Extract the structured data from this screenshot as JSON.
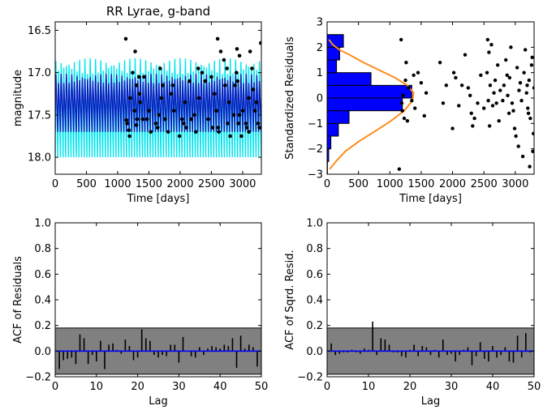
{
  "colors": {
    "model_outer": "#00e5ee",
    "model_inner": "#0a1fc0",
    "points": "#000000",
    "hist_fill": "#0000ff",
    "normal_curve": "#ff8c1a",
    "acf_band": "#808080",
    "zero_line": "#0000ff"
  },
  "chart_data": [
    {
      "type": "line",
      "title": "RR Lyrae, g-band",
      "xlabel": "Time [days]",
      "ylabel": "magnitude",
      "xlim": [
        0,
        3300
      ],
      "ylim": [
        18.2,
        16.4
      ],
      "y_inverted": true,
      "xticks": [
        0,
        500,
        1000,
        1500,
        2000,
        2500,
        3000
      ],
      "xtick_labels": [
        "0",
        "500",
        "1000",
        "1500",
        "2000",
        "2500",
        "3000"
      ],
      "yticks": [
        16.5,
        17.0,
        17.5,
        18.0
      ],
      "ytick_labels": [
        "16.5",
        "17.0",
        "17.5",
        "18.0"
      ],
      "model_band": {
        "oscillation_count": 78,
        "outer_min": 16.72,
        "outer_max": 18.0,
        "inner_min": 16.95,
        "inner_max": 17.7
      },
      "points": [
        [
          1130,
          16.6
        ],
        [
          1140,
          17.56
        ],
        [
          1150,
          17.6
        ],
        [
          1180,
          17.68
        ],
        [
          1190,
          17.75
        ],
        [
          1240,
          17.0
        ],
        [
          1270,
          17.45
        ],
        [
          1280,
          16.75
        ],
        [
          1300,
          17.15
        ],
        [
          1300,
          17.62
        ],
        [
          1310,
          17.55
        ],
        [
          1340,
          17.05
        ],
        [
          1350,
          17.25
        ],
        [
          1360,
          17.35
        ],
        [
          1400,
          17.55
        ],
        [
          1420,
          17.05
        ],
        [
          1470,
          17.55
        ],
        [
          1530,
          17.7
        ],
        [
          1610,
          17.6
        ],
        [
          1640,
          17.65
        ],
        [
          1660,
          17.5
        ],
        [
          1680,
          16.95
        ],
        [
          1720,
          17.15
        ],
        [
          1760,
          17.55
        ],
        [
          1810,
          17.7
        ],
        [
          1860,
          17.25
        ],
        [
          1880,
          17.15
        ],
        [
          1990,
          17.75
        ],
        [
          2030,
          17.55
        ],
        [
          2060,
          17.6
        ],
        [
          2100,
          17.65
        ],
        [
          2150,
          17.1
        ],
        [
          2180,
          17.55
        ],
        [
          2230,
          17.5
        ],
        [
          2250,
          17.7
        ],
        [
          2290,
          16.95
        ],
        [
          2350,
          17.0
        ],
        [
          2400,
          17.1
        ],
        [
          2500,
          17.05
        ],
        [
          2520,
          17.65
        ],
        [
          2580,
          17.45
        ],
        [
          2600,
          16.6
        ],
        [
          2610,
          17.65
        ],
        [
          2620,
          17.7
        ],
        [
          2650,
          16.75
        ],
        [
          2700,
          16.85
        ],
        [
          2720,
          17.15
        ],
        [
          2750,
          16.95
        ],
        [
          2760,
          17.6
        ],
        [
          2800,
          17.75
        ],
        [
          2860,
          17.5
        ],
        [
          2880,
          17.15
        ],
        [
          2900,
          17.0
        ],
        [
          2910,
          16.72
        ],
        [
          2920,
          17.1
        ],
        [
          2930,
          17.6
        ],
        [
          2950,
          16.8
        ],
        [
          2980,
          17.75
        ],
        [
          3000,
          17.45
        ],
        [
          3050,
          17.6
        ],
        [
          3070,
          17.65
        ],
        [
          3100,
          17.7
        ],
        [
          3120,
          16.75
        ],
        [
          3150,
          16.95
        ],
        [
          3170,
          17.2
        ],
        [
          3200,
          17.45
        ],
        [
          3250,
          17.6
        ],
        [
          3270,
          17.65
        ],
        [
          3290,
          16.65
        ],
        [
          3100,
          17.3
        ],
        [
          2950,
          17.5
        ],
        [
          2550,
          17.25
        ],
        [
          2300,
          17.3
        ],
        [
          1900,
          17.45
        ],
        [
          1700,
          17.3
        ],
        [
          1500,
          17.45
        ],
        [
          1200,
          17.3
        ],
        [
          2780,
          17.35
        ],
        [
          3220,
          17.35
        ],
        [
          2450,
          17.55
        ],
        [
          2080,
          17.35
        ]
      ]
    },
    {
      "type": "scatter",
      "xlabel": "Time [days]",
      "ylabel": "Standardized Residuals",
      "xlim": [
        0,
        3300
      ],
      "ylim": [
        -3,
        3
      ],
      "xticks": [
        0,
        500,
        1000,
        1500,
        2000,
        2500,
        3000
      ],
      "xtick_labels": [
        "0",
        "500",
        "1000",
        "1500",
        "2000",
        "2500",
        "3000"
      ],
      "yticks": [
        -3,
        -2,
        -1,
        0,
        1,
        2,
        3
      ],
      "ytick_labels": [
        "−3",
        "−2",
        "−1",
        "0",
        "1",
        "2",
        "3"
      ],
      "histogram": {
        "bin_edges": [
          -3.0,
          -2.5,
          -2.0,
          -1.5,
          -1.0,
          -0.5,
          0.0,
          0.5,
          1.0,
          1.5,
          2.0,
          2.5
        ],
        "counts": [
          5,
          25,
          60,
          180,
          350,
          1200,
          1350,
          700,
          150,
          200,
          260
        ]
      },
      "normal_curve": {
        "x": [
          40,
          140,
          290,
          510,
          770,
          1020,
          1230,
          1360,
          1380,
          1280,
          1080,
          830,
          580,
          360,
          200,
          90,
          30
        ],
        "y": [
          -2.8,
          -2.5,
          -2.1,
          -1.7,
          -1.3,
          -0.9,
          -0.5,
          -0.1,
          0.2,
          0.5,
          0.8,
          1.1,
          1.4,
          1.7,
          1.9,
          2.1,
          2.3
        ]
      },
      "points": [
        [
          1150,
          -2.8
        ],
        [
          1180,
          2.3
        ],
        [
          1190,
          -0.2
        ],
        [
          1200,
          -0.5
        ],
        [
          1210,
          0.1
        ],
        [
          1230,
          -0.8
        ],
        [
          1250,
          0.7
        ],
        [
          1260,
          1.4
        ],
        [
          1280,
          -0.9
        ],
        [
          1300,
          0.4
        ],
        [
          1350,
          -0.1
        ],
        [
          1380,
          0.9
        ],
        [
          1400,
          -0.4
        ],
        [
          1450,
          1.0
        ],
        [
          1500,
          0.6
        ],
        [
          1550,
          -0.7
        ],
        [
          1580,
          0.2
        ],
        [
          1800,
          1.4
        ],
        [
          1850,
          -0.2
        ],
        [
          1900,
          0.5
        ],
        [
          2000,
          -1.2
        ],
        [
          2020,
          1.0
        ],
        [
          2050,
          0.8
        ],
        [
          2100,
          -0.3
        ],
        [
          2150,
          0.5
        ],
        [
          2200,
          1.7
        ],
        [
          2250,
          0.4
        ],
        [
          2280,
          0.1
        ],
        [
          2300,
          -0.6
        ],
        [
          2320,
          -1.1
        ],
        [
          2350,
          -0.8
        ],
        [
          2400,
          -0.2
        ],
        [
          2450,
          0.9
        ],
        [
          2500,
          -0.4
        ],
        [
          2550,
          1.0
        ],
        [
          2560,
          2.3
        ],
        [
          2570,
          -0.1
        ],
        [
          2580,
          1.8
        ],
        [
          2590,
          -1.1
        ],
        [
          2600,
          0.5
        ],
        [
          2620,
          2.1
        ],
        [
          2640,
          -0.3
        ],
        [
          2660,
          0.2
        ],
        [
          2680,
          0.7
        ],
        [
          2700,
          -0.2
        ],
        [
          2720,
          1.3
        ],
        [
          2740,
          -0.9
        ],
        [
          2760,
          0.3
        ],
        [
          2800,
          -0.1
        ],
        [
          2820,
          0.5
        ],
        [
          2850,
          1.5
        ],
        [
          2870,
          0.9
        ],
        [
          2880,
          0.1
        ],
        [
          2900,
          -0.6
        ],
        [
          2910,
          0.8
        ],
        [
          2930,
          2.0
        ],
        [
          2950,
          -0.2
        ],
        [
          2970,
          -0.5
        ],
        [
          2990,
          -1.2
        ],
        [
          3010,
          -1.5
        ],
        [
          3030,
          1.2
        ],
        [
          3050,
          -1.9
        ],
        [
          3060,
          0.3
        ],
        [
          3080,
          0.6
        ],
        [
          3100,
          -0.1
        ],
        [
          3120,
          -2.3
        ],
        [
          3140,
          1.0
        ],
        [
          3160,
          1.9
        ],
        [
          3180,
          0.2
        ],
        [
          3200,
          -0.4
        ],
        [
          3220,
          0.7
        ],
        [
          3240,
          -0.8
        ],
        [
          3260,
          1.3
        ],
        [
          3280,
          -2.1
        ],
        [
          3300,
          0.4
        ],
        [
          3290,
          -1.4
        ],
        [
          3270,
          1.6
        ],
        [
          3230,
          -2.7
        ],
        [
          3210,
          -0.6
        ],
        [
          3190,
          0.5
        ]
      ]
    },
    {
      "type": "bar",
      "xlabel": "Lag",
      "ylabel": "ACF of Residuals",
      "xlim": [
        0,
        50
      ],
      "ylim": [
        -0.2,
        1.0
      ],
      "confidence_band": [
        -0.18,
        0.18
      ],
      "xticks": [
        0,
        10,
        20,
        30,
        40,
        50
      ],
      "xtick_labels": [
        "0",
        "10",
        "20",
        "30",
        "40",
        "50"
      ],
      "yticks": [
        -0.2,
        0.0,
        0.2,
        0.4,
        0.6,
        0.8,
        1.0
      ],
      "ytick_labels": [
        "−0.2",
        "0.0",
        "0.2",
        "0.4",
        "0.6",
        "0.8",
        "1.0"
      ],
      "lags": [
        1,
        2,
        3,
        4,
        5,
        6,
        7,
        8,
        9,
        10,
        11,
        12,
        13,
        14,
        15,
        16,
        17,
        18,
        19,
        20,
        21,
        22,
        23,
        24,
        25,
        26,
        27,
        28,
        29,
        30,
        31,
        32,
        33,
        34,
        35,
        36,
        37,
        38,
        39,
        40,
        41,
        42,
        43,
        44,
        45,
        46,
        47,
        48,
        49
      ],
      "values": [
        -0.14,
        -0.07,
        -0.06,
        -0.05,
        -0.1,
        0.13,
        0.1,
        -0.1,
        -0.03,
        -0.08,
        0.08,
        -0.14,
        0.05,
        0.06,
        0.01,
        -0.02,
        0.09,
        0.04,
        -0.07,
        -0.05,
        0.17,
        0.1,
        0.08,
        -0.03,
        -0.05,
        -0.03,
        -0.04,
        0.05,
        0.05,
        -0.09,
        0.11,
        0.0,
        -0.04,
        -0.05,
        0.03,
        -0.03,
        0.02,
        0.04,
        0.03,
        0.02,
        0.05,
        0.04,
        0.1,
        -0.13,
        0.12,
        0.02,
        0.05,
        0.03,
        -0.12
      ]
    },
    {
      "type": "bar",
      "xlabel": "Lag",
      "ylabel": "ACF of Sqrd. Resid.",
      "xlim": [
        0,
        50
      ],
      "ylim": [
        -0.2,
        1.0
      ],
      "confidence_band": [
        -0.18,
        0.18
      ],
      "xticks": [
        0,
        10,
        20,
        30,
        40,
        50
      ],
      "xtick_labels": [
        "0",
        "10",
        "20",
        "30",
        "40",
        "50"
      ],
      "yticks": [
        -0.2,
        0.0,
        0.2,
        0.4,
        0.6,
        0.8,
        1.0
      ],
      "ytick_labels": [
        "−0.2",
        "0.0",
        "0.2",
        "0.4",
        "0.6",
        "0.8",
        "1.0"
      ],
      "lags": [
        1,
        2,
        3,
        4,
        5,
        6,
        7,
        8,
        9,
        10,
        11,
        12,
        13,
        14,
        15,
        16,
        17,
        18,
        19,
        20,
        21,
        22,
        23,
        24,
        25,
        26,
        27,
        28,
        29,
        30,
        31,
        32,
        33,
        34,
        35,
        36,
        37,
        38,
        39,
        40,
        41,
        42,
        43,
        44,
        45,
        46,
        47,
        48,
        49
      ],
      "values": [
        0.06,
        -0.03,
        -0.02,
        -0.01,
        -0.01,
        0.01,
        -0.01,
        -0.02,
        0.02,
        0.01,
        0.23,
        -0.03,
        0.1,
        0.09,
        0.05,
        -0.01,
        -0.01,
        -0.04,
        -0.05,
        0.01,
        0.05,
        -0.04,
        0.04,
        0.03,
        -0.03,
        0.01,
        -0.05,
        0.09,
        -0.03,
        -0.02,
        -0.08,
        -0.03,
        0.01,
        0.03,
        -0.11,
        -0.04,
        0.07,
        -0.06,
        -0.08,
        0.04,
        -0.05,
        -0.03,
        0.03,
        -0.08,
        -0.09,
        0.12,
        -0.05,
        0.14,
        -0.01
      ]
    }
  ]
}
